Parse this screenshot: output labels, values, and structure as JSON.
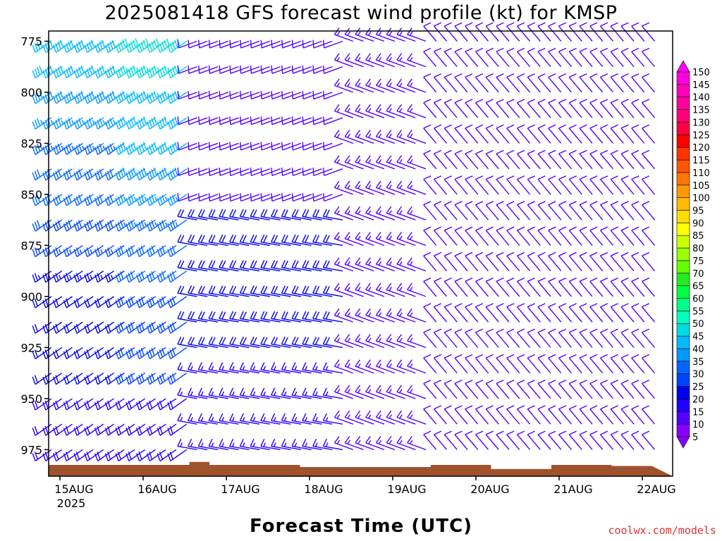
{
  "chart_data": {
    "type": "wind_barb_time_height",
    "title": "2025081418 GFS forecast wind profile (kt) for KMSP",
    "xlabel": "Forecast Time (UTC)",
    "ylabel": "",
    "x_ticks": [
      "15AUG",
      "16AUG",
      "17AUG",
      "18AUG",
      "19AUG",
      "20AUG",
      "21AUG",
      "22AUG"
    ],
    "x_year_label": "2025",
    "y_ticks": [
      775,
      800,
      825,
      850,
      875,
      900,
      925,
      950,
      975
    ],
    "y_range_hPa": [
      770,
      988
    ],
    "time_range_days_from_15AUG00Z": [
      0,
      7.25
    ],
    "colorbar": {
      "levels": [
        5,
        10,
        15,
        20,
        25,
        30,
        35,
        40,
        45,
        50,
        55,
        60,
        65,
        70,
        75,
        80,
        85,
        90,
        95,
        100,
        105,
        110,
        115,
        120,
        125,
        130,
        135,
        140,
        145,
        150
      ],
      "colors": [
        "#8800ff",
        "#5500ff",
        "#2200ff",
        "#0000ee",
        "#0044ff",
        "#0066ff",
        "#0099ff",
        "#00bbff",
        "#00dddd",
        "#00ffbb",
        "#00ff88",
        "#00ff44",
        "#22ee22",
        "#66ff00",
        "#99ff00",
        "#ccff00",
        "#ffff00",
        "#ffdd00",
        "#ffbb00",
        "#ff9900",
        "#ff7700",
        "#ff5500",
        "#ff3300",
        "#ff0000",
        "#ff0044",
        "#ff0077",
        "#ff0099",
        "#ff00bb",
        "#ff00dd",
        "#ff00ff"
      ]
    },
    "surface_color": "#a0522d",
    "wind_speed_kt_summary": [
      {
        "period": "15AUG-16AUG",
        "levels": "775-975",
        "speed_kt": 25,
        "direction_deg": 230
      },
      {
        "period": "16AUG",
        "levels": "775-850",
        "speed_kt": 40,
        "direction_deg": 250
      },
      {
        "period": "17AUG-18AUG",
        "levels": "875-975",
        "speed_kt": 20,
        "direction_deg": 280
      },
      {
        "period": "19AUG-22AUG",
        "levels": "775-975",
        "speed_kt": 10,
        "direction_deg": 320
      }
    ]
  },
  "credit": "coolwx.com/models"
}
